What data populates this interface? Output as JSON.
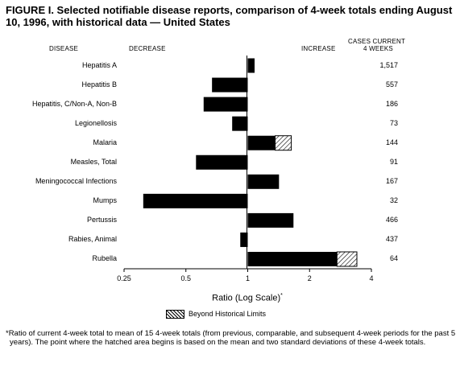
{
  "title": "FIGURE I. Selected notifiable disease reports, comparison of 4-week totals ending August 10, 1996, with historical data — United States",
  "headers": {
    "disease": "DISEASE",
    "decrease": "DECREASE",
    "increase": "INCREASE",
    "cases_line1": "CASES CURRENT",
    "cases_line2": "4 WEEKS"
  },
  "legend": {
    "label": "Beyond Historical Limits"
  },
  "xaxis": {
    "label": "Ratio (Log Scale)",
    "marker": "*"
  },
  "footnote": "*Ratio of current 4-week total to mean of 15 4-week totals (from previous, comparable, and subsequent 4-week periods for the past 5 years). The point where the hatched area begins is based on the mean and two standard deviations of these 4-week totals.",
  "chart_data": {
    "type": "bar",
    "orientation": "horizontal",
    "xscale": "log2",
    "xlim": [
      0.25,
      4
    ],
    "xticks": [
      "0.25",
      "0.5",
      "1",
      "2",
      "4"
    ],
    "xlabel": "Ratio (Log Scale)*",
    "categories": [
      "Hepatitis A",
      "Hepatitis B",
      "Hepatitis, C/Non-A, Non-B",
      "Legionellosis",
      "Malaria",
      "Measles, Total",
      "Meningococcal Infections",
      "Mumps",
      "Pertussis",
      "Rabies, Animal",
      "Rubella"
    ],
    "ratios": [
      1.08,
      0.67,
      0.61,
      0.84,
      1.63,
      0.56,
      1.42,
      0.31,
      1.67,
      0.92,
      3.4
    ],
    "hatch_start": [
      null,
      null,
      null,
      null,
      1.36,
      null,
      null,
      null,
      null,
      null,
      2.72
    ],
    "cases_current": [
      "1,517",
      "557",
      "186",
      "73",
      "144",
      "91",
      "167",
      "32",
      "466",
      "437",
      "64"
    ],
    "legend": [
      "Beyond Historical Limits"
    ]
  }
}
